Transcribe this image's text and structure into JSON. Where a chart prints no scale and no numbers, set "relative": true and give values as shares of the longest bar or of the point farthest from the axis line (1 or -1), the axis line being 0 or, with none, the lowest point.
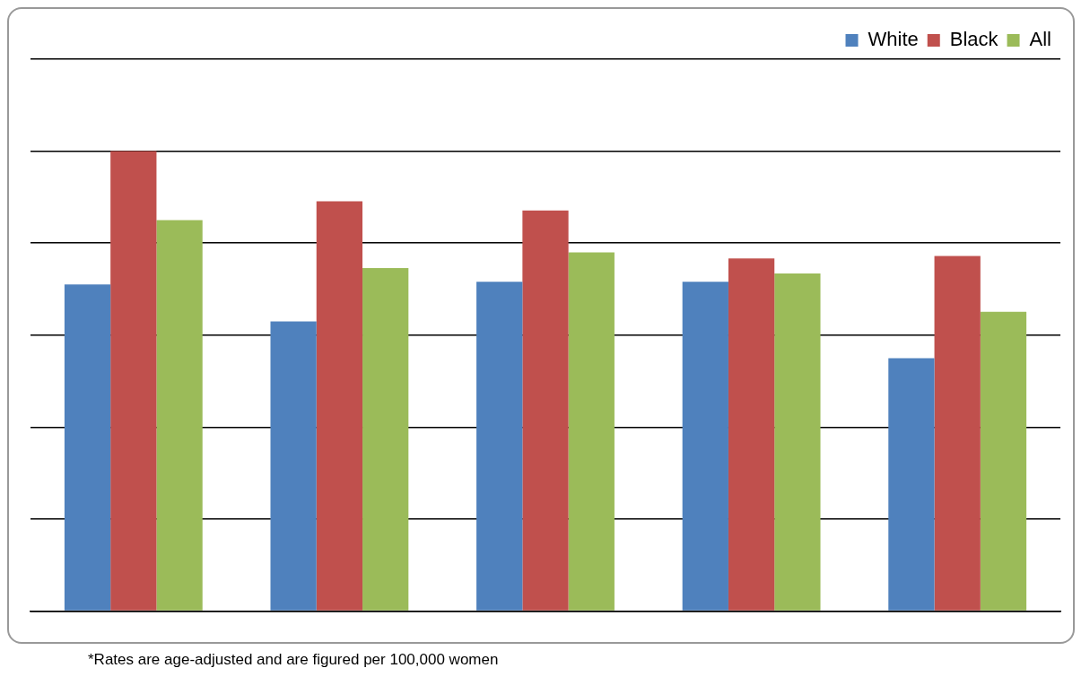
{
  "chart_data": {
    "type": "bar",
    "relative": true,
    "categories": [
      null,
      null,
      null,
      null,
      null
    ],
    "series": [
      {
        "name": "White",
        "color": "#4f81bd",
        "values": [
          0.71,
          0.63,
          0.716,
          0.716,
          0.55
        ]
      },
      {
        "name": "Black",
        "color": "#c0504d",
        "values": [
          1,
          0.891,
          0.871,
          0.767,
          0.772
        ]
      },
      {
        "name": "All",
        "color": "#9bbb59",
        "values": [
          0.85,
          0.746,
          0.78,
          0.734,
          0.651
        ]
      }
    ],
    "grid": "y",
    "legend": "top right",
    "annotations": [
      "*Rates are age-adjusted and are figured per 100,000 women"
    ]
  }
}
